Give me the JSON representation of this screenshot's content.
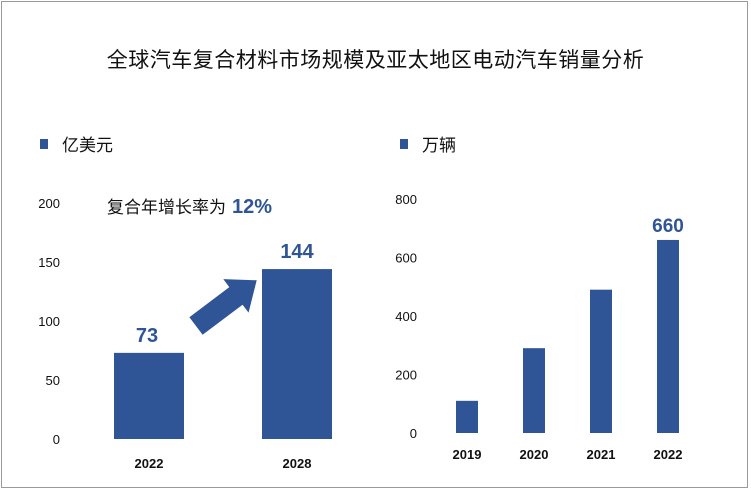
{
  "title": "全球汽车复合材料市场规模及亚太地区电动汽车销量分析",
  "colors": {
    "bar": "#2f5597",
    "label": "#2f5597"
  },
  "chart_data": [
    {
      "type": "bar",
      "legend": "亿美元",
      "categories": [
        "2022",
        "2028"
      ],
      "values": [
        73,
        144
      ],
      "ylim": [
        0,
        200
      ],
      "yticks": [
        0,
        50,
        100,
        150,
        200
      ],
      "data_labels": [
        "73",
        "144"
      ],
      "annotation": {
        "text": "复合年增长率为",
        "value": "12%"
      },
      "grid": false
    },
    {
      "type": "bar",
      "legend": "万辆",
      "categories": [
        "2019",
        "2020",
        "2021",
        "2022"
      ],
      "values": [
        110,
        290,
        490,
        660
      ],
      "ylim": [
        0,
        800
      ],
      "yticks": [
        0,
        200,
        400,
        600,
        800
      ],
      "data_labels": [
        "",
        "",
        "",
        "660"
      ],
      "grid": false
    }
  ]
}
